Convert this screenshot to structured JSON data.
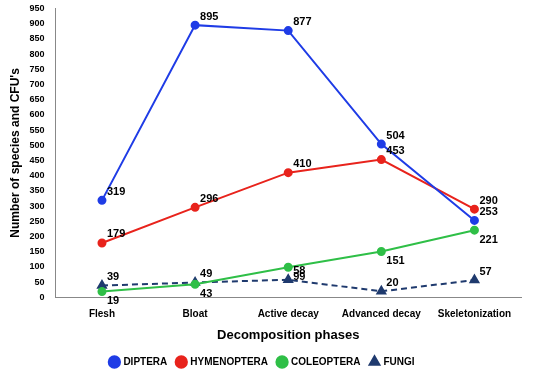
{
  "chart_data": {
    "type": "line",
    "x_label": "Decomposition phases",
    "y_label": "Number of species and CFU's",
    "categories": [
      "Flesh",
      "Bloat",
      "Active decay",
      "Advanced decay",
      "Skeletonization"
    ],
    "series": [
      {
        "name": "DIPTERA",
        "color": "#1f3ce6",
        "marker": "circle",
        "line_style": "solid",
        "values": [
          319,
          895,
          877,
          504,
          253
        ]
      },
      {
        "name": "HYMENOPTERA",
        "color": "#e8231c",
        "marker": "circle",
        "line_style": "solid",
        "values": [
          179,
          296,
          410,
          453,
          290
        ]
      },
      {
        "name": "COLEOPTERA",
        "color": "#2fbf47",
        "marker": "circle",
        "line_style": "solid",
        "values": [
          19,
          43,
          99,
          151,
          221
        ]
      },
      {
        "name": "FUNGI",
        "color": "#1f3a6e",
        "marker": "triangle",
        "line_style": "dashed",
        "values": [
          39,
          49,
          58,
          20,
          57
        ]
      }
    ],
    "ylim": [
      0,
      950
    ],
    "yticks": [
      0,
      50,
      100,
      150,
      200,
      250,
      300,
      350,
      400,
      450,
      500,
      550,
      600,
      650,
      700,
      750,
      800,
      850,
      900,
      950
    ],
    "grid": false,
    "legend": "bottom",
    "data_labels": true
  }
}
